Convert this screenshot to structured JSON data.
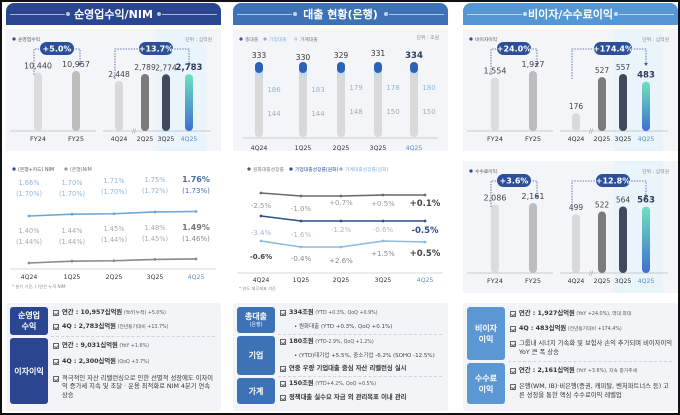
{
  "colors": {
    "header_1": "#2a4690",
    "header_2": "#3e72b6",
    "header_3": "#5596d4",
    "navy": "#2d4a8f",
    "tag_dark": "#2a4690",
    "tag_mid": "#3e72b6",
    "tag_light": "#5b97d2"
  },
  "sections": [
    {
      "title": "순영업수익/NIM"
    },
    {
      "title": "대출 현황(은행)"
    },
    {
      "title": "비이자/수수료이익"
    }
  ],
  "chart_data": [
    {
      "id": "operating-revenue",
      "type": "bar",
      "legend": "순영업수익",
      "unit": "단위 : 십억원",
      "annual": {
        "categories": [
          "FY24",
          "FY25"
        ],
        "values": [
          10440,
          10957
        ],
        "labels": [
          "10,440",
          "10,957"
        ],
        "growth": "+5.0%"
      },
      "quarterly": {
        "categories": [
          "4Q24",
          "2Q25",
          "3Q25",
          "4Q25"
        ],
        "values": [
          2448,
          2789,
          2774,
          2783
        ],
        "labels": [
          "2,448",
          "2,789",
          "2,774",
          "2,783"
        ],
        "growth": "+13.7%"
      }
    },
    {
      "id": "nim",
      "type": "line",
      "legend": [
        "(은행+카드) NIM",
        "(은행)NIM"
      ],
      "categories": [
        "4Q24",
        "1Q25",
        "2Q25",
        "3Q25",
        "4Q25"
      ],
      "series": [
        {
          "name": "(은행+카드) NIM",
          "values": [
            1.66,
            1.7,
            1.71,
            1.75,
            1.76
          ],
          "labels": [
            "1.66%",
            "1.70%",
            "1.71%",
            "1.75%",
            "1.76%"
          ],
          "cumulative": [
            "(1.70%)",
            "(1.70%)",
            "(1.70%)",
            "(1.72%)",
            "(1.73%)"
          ]
        },
        {
          "name": "(은행)NIM",
          "values": [
            1.4,
            1.44,
            1.45,
            1.48,
            1.49
          ],
          "labels": [
            "1.40%",
            "1.44%",
            "1.45%",
            "1.48%",
            "1.49%"
          ],
          "cumulative": [
            "(1.44%)",
            "(1.44%)",
            "(1.44%)",
            "(1.45%)",
            "(1.46%)"
          ]
        }
      ],
      "footnote": "* 분기 기준, ( )안은 누적 NIM"
    },
    {
      "id": "loans",
      "type": "bar",
      "legend": [
        "총대출",
        "기업대출",
        "가계대출"
      ],
      "unit": "단위 : 조원",
      "categories": [
        "4Q24",
        "1Q25",
        "2Q25",
        "3Q25",
        "4Q25"
      ],
      "series": [
        {
          "name": "총대출",
          "values": [
            333,
            330,
            329,
            331,
            334
          ]
        },
        {
          "name": "기업대출",
          "values": [
            186,
            183,
            179,
            178,
            180
          ]
        },
        {
          "name": "가계대출",
          "values": [
            144,
            144,
            148,
            150,
            150
          ]
        }
      ],
      "footnote": "* 무수익여신 기준"
    },
    {
      "id": "loan-growth",
      "type": "line",
      "legend": [
        "원화대출성장률",
        "기업대출성장률(원화)",
        "가계대출성장률(원화)"
      ],
      "categories": [
        "4Q24",
        "1Q25",
        "2Q25",
        "3Q25",
        "4Q25"
      ],
      "series": [
        {
          "name": "원화대출성장률",
          "values": [
            -2.5,
            -1.0,
            0.7,
            0.5,
            0.1
          ],
          "labels": [
            "-2.5%",
            "-1.0%",
            "+0.7%",
            "+0.5%",
            "+0.1%"
          ]
        },
        {
          "name": "기업대출성장률(원화)",
          "values": [
            -3.4,
            -1.6,
            -1.2,
            -0.6,
            -0.5
          ],
          "labels": [
            "-3.4%",
            "-1.6%",
            "-1.2%",
            "-0.6%",
            "-0.5%"
          ]
        },
        {
          "name": "가계대출성장률(원화)",
          "values": [
            -0.6,
            -0.4,
            2.6,
            1.5,
            0.5
          ],
          "labels": [
            "-0.6%",
            "-0.4%",
            "+2.6%",
            "+1.5%",
            "+0.5%"
          ]
        }
      ],
      "footnote": "* 연도 재무제표 기준"
    },
    {
      "id": "non-interest",
      "type": "bar",
      "legend": "비이자이익",
      "unit": "단위 : 십억원",
      "annual": {
        "categories": [
          "FY24",
          "FY25"
        ],
        "values": [
          1554,
          1927
        ],
        "labels": [
          "1,554",
          "1,927"
        ],
        "growth": "+24.0%"
      },
      "quarterly": {
        "categories": [
          "4Q24",
          "2Q25",
          "3Q25",
          "4Q25"
        ],
        "values": [
          176,
          527,
          557,
          483
        ],
        "labels": [
          "176",
          "527",
          "557",
          "483"
        ],
        "growth": "+174.4%"
      }
    },
    {
      "id": "fee-income",
      "type": "bar",
      "legend": "수수료이익",
      "unit": "단위 : 십억원",
      "annual": {
        "categories": [
          "FY24",
          "FY25"
        ],
        "values": [
          2086,
          2161
        ],
        "labels": [
          "2,086",
          "2,161"
        ],
        "growth": "+3.6%"
      },
      "quarterly": {
        "categories": [
          "4Q24",
          "2Q25",
          "3Q25",
          "4Q25"
        ],
        "values": [
          499,
          522,
          564,
          563
        ],
        "labels": [
          "499",
          "522",
          "564",
          "563"
        ],
        "growth": "+12.8%"
      }
    }
  ],
  "summary": {
    "col1": [
      {
        "tag": "순영업\n수익",
        "items": [
          {
            "main": "연간 : 10,957십억원",
            "note": " (YoY(누적) +5.0%)"
          },
          {
            "main": "4Q : 2,783십억원",
            "note": " (전년동기대비 +13.7%)"
          }
        ]
      },
      {
        "tag": "이자이익",
        "items": [
          {
            "main": "연간 : 9,031십억원",
            "note": " (YoY +1.6%)"
          },
          {
            "main": "4Q : 2,300십억원",
            "note": " (QoQ +3.7%)"
          },
          {
            "main": "적극적인 자산 리밸런싱으로 인한 선별적 성장에도 이자이익 증가세 지속 및 조달 · 운용 최적화로 NIM 4분기 연속 상승",
            "note": ""
          }
        ]
      }
    ],
    "col2": [
      {
        "tag": "총대출",
        "sub": "(은행)",
        "items": [
          {
            "main": "334조원",
            "note": " (YTD +0.3%, QoQ +0.9%)"
          },
          {
            "sub": "• 원화대출 (YTD +0.3%, QoQ +0.1%)"
          }
        ]
      },
      {
        "tag": "기업",
        "items": [
          {
            "main": "180조원",
            "note": " (YTD-2.9%, QoQ +1.2%)"
          },
          {
            "sub": "• (YTD)대기업 +5.5%, 중소기업 -6.2% (SOHO -12.5%)"
          },
          {
            "main": "연중 우량 기업대출 중심 자산 리밸런싱 실시",
            "note": ""
          }
        ]
      },
      {
        "tag": "가계",
        "items": [
          {
            "main": "150조원",
            "note": " (YTD+4.2%, QoQ +0.5%)"
          },
          {
            "main": "정책대출 실수요 자금 외 관리목표 이내 관리",
            "note": ""
          }
        ]
      }
    ],
    "col3": [
      {
        "tag": "비이자\n이익",
        "items": [
          {
            "main": "연간 : 1,927십억원",
            "note": " (YoY +24.0%), 역대 최대"
          },
          {
            "main": "4Q : 483십억원",
            "note": " (전년동기대비 +174.4%)"
          },
          {
            "main": "그룹내 시너지 가속화 및 보험사 손익 추가되며 비이자이익 YoY 큰 폭 상승",
            "note": ""
          }
        ]
      },
      {
        "tag": "수수료\n이익",
        "items": [
          {
            "main": "연간 : 2,161십억원",
            "note": " (YoY +3.6%), 지속 증가추세"
          },
          {
            "main": "은행(WM, IB)·비은행(증권, 캐피탈, 벤처파트너스 등) 고른 성장을 통한 핵심 수수료이익 레벨업",
            "note": ""
          }
        ]
      }
    ]
  }
}
